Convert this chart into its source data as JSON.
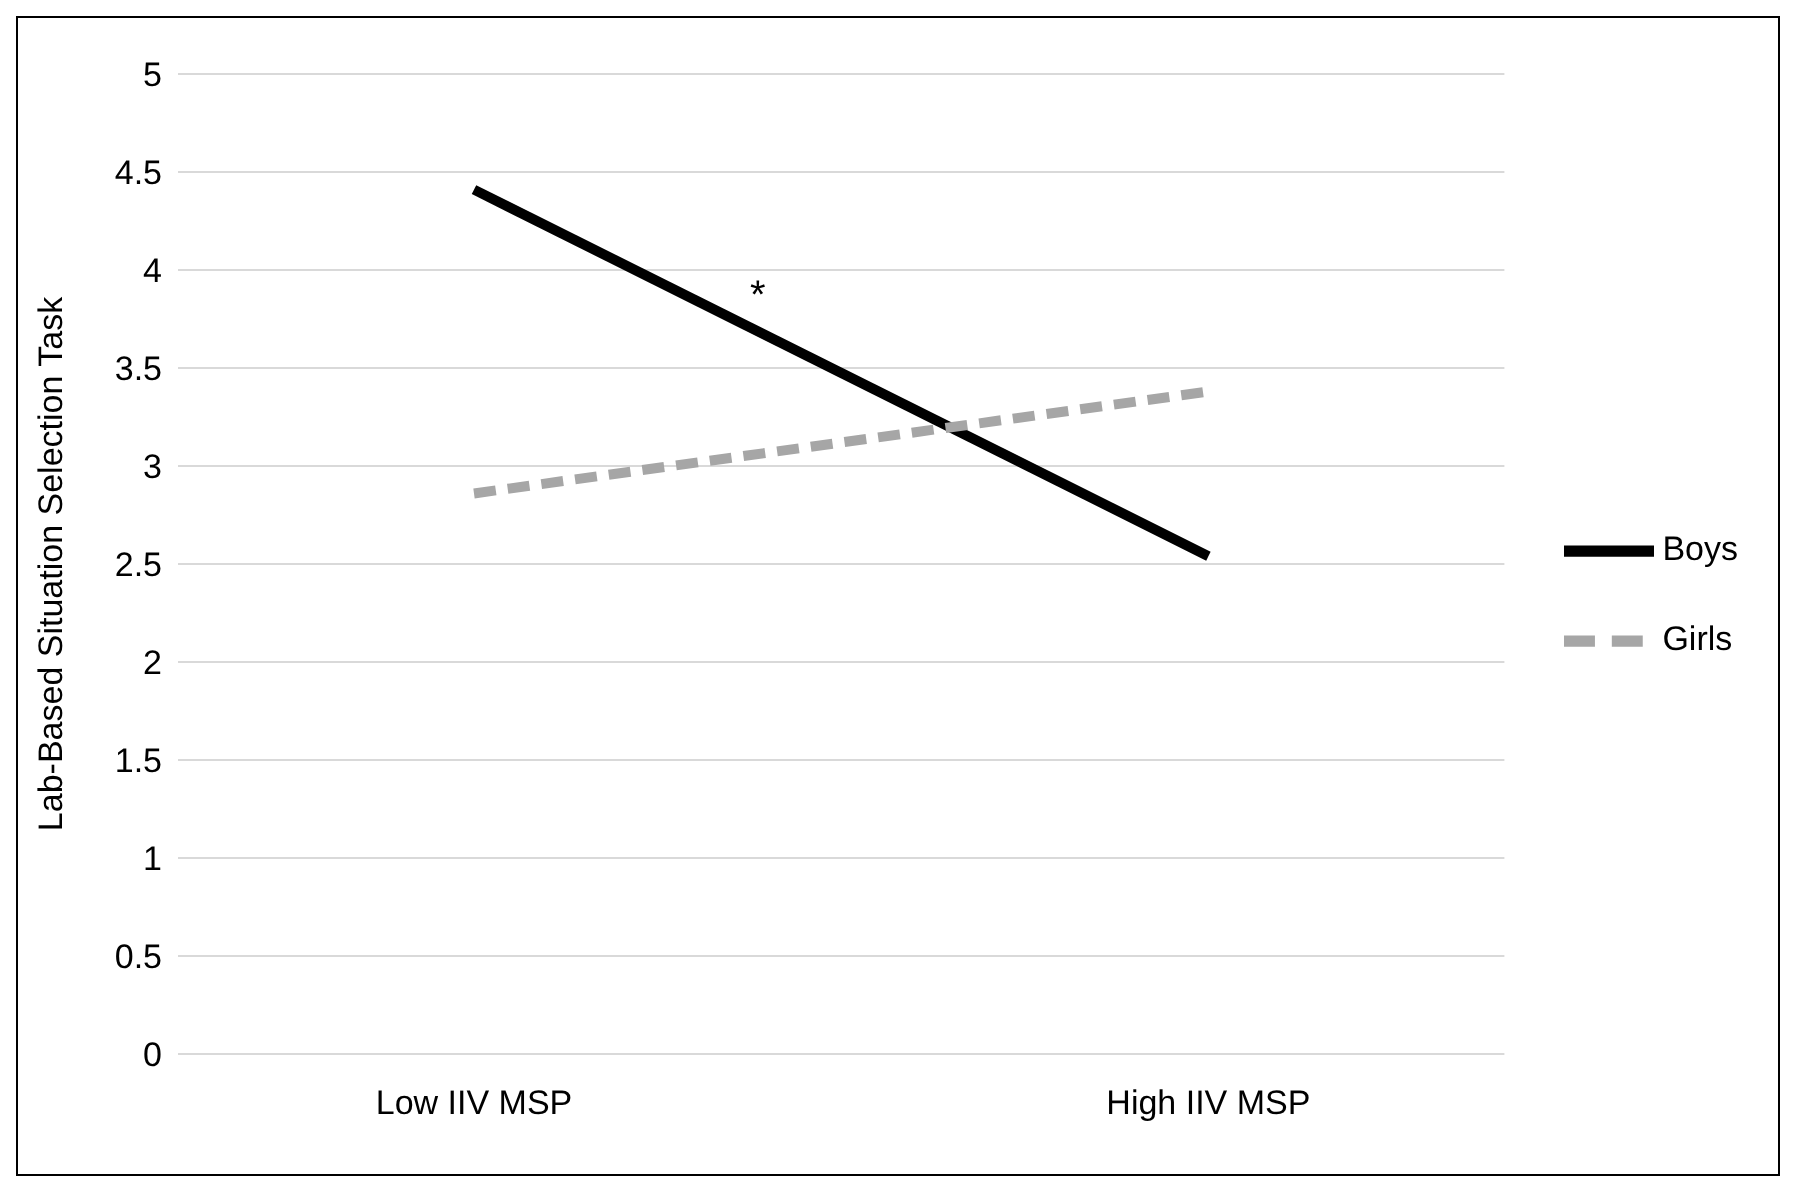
{
  "chart_data": {
    "type": "line",
    "ylabel": "Lab-Based Situation Selection Task",
    "categories": [
      "Low IIV MSP",
      "High IIV MSP"
    ],
    "series": [
      {
        "name": "Boys",
        "color": "#000000",
        "values": [
          4.41,
          2.54
        ],
        "line_style": "solid"
      },
      {
        "name": "Girls",
        "color": "#a6a6a6",
        "values": [
          2.86,
          3.38
        ],
        "line_style": "dashed"
      }
    ],
    "ylim": [
      0,
      5
    ],
    "yticks": [
      0,
      0.5,
      1,
      1.5,
      2,
      2.5,
      3,
      3.5,
      4,
      4.5,
      5
    ],
    "grid": "y",
    "legend": "right",
    "marker": "none",
    "annotations": [
      "*"
    ]
  }
}
